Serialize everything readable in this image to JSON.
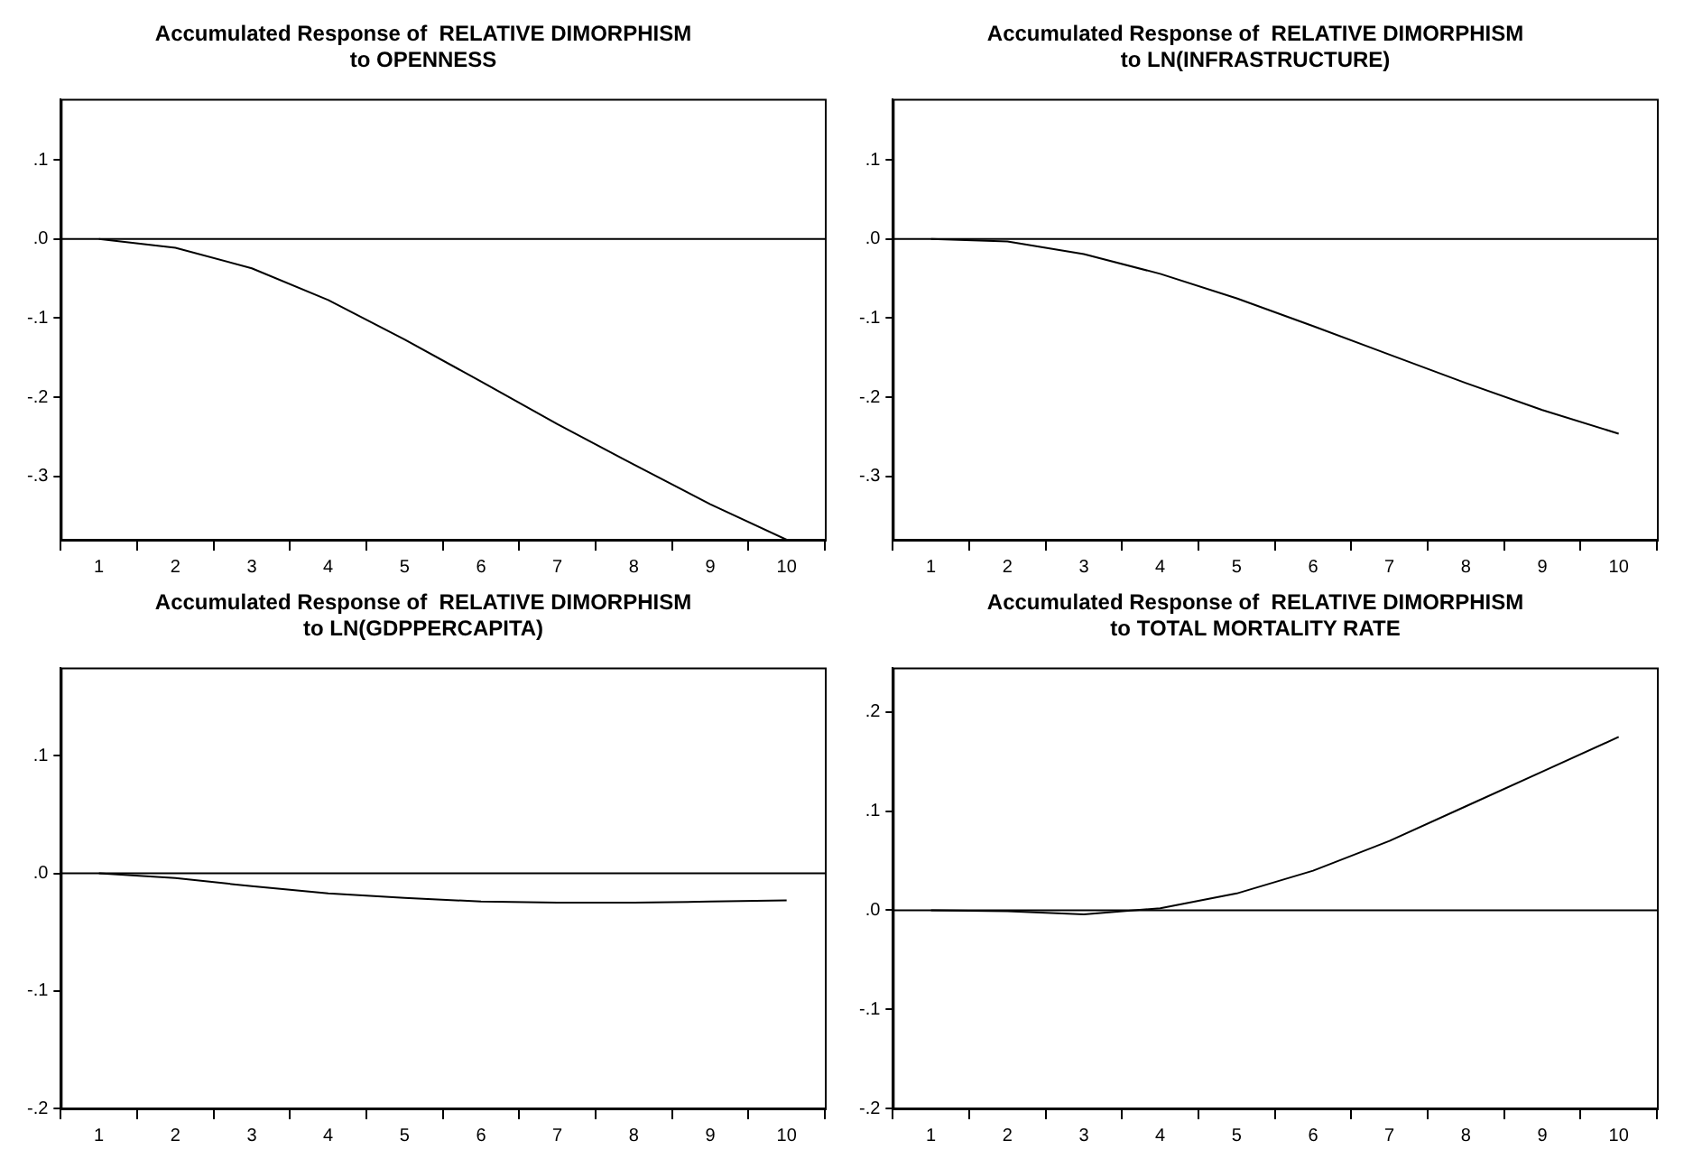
{
  "chart_data": [
    {
      "type": "line",
      "title": "Accumulated Response of  RELATIVE DIMORPHISM\nto OPENNESS",
      "categories": [
        "1",
        "2",
        "3",
        "4",
        "5",
        "6",
        "7",
        "8",
        "9",
        "10"
      ],
      "series": [
        {
          "color": "#000000",
          "values": [
            0,
            -0.011,
            -0.037,
            -0.077,
            -0.127,
            -0.18,
            -0.234,
            -0.285,
            -0.335,
            -0.38
          ]
        }
      ],
      "ylim": [
        -0.38,
        0.177
      ],
      "yticks": [
        {
          "value": 0.1,
          "label": ".1"
        },
        {
          "value": 0,
          "label": ".0"
        },
        {
          "value": -0.1,
          "label": "-.1"
        },
        {
          "value": -0.2,
          "label": "-.2"
        },
        {
          "value": -0.3,
          "label": "-.3"
        }
      ],
      "ref_lines": [
        {
          "axis": "y",
          "value": 0,
          "color": "#000000"
        }
      ],
      "grid": false,
      "legend": false,
      "marker": "none",
      "line_style": "solid"
    },
    {
      "type": "line",
      "title": "Accumulated Response of  RELATIVE DIMORPHISM\nto LN(INFRASTRUCTURE)",
      "categories": [
        "1",
        "2",
        "3",
        "4",
        "5",
        "6",
        "7",
        "8",
        "9",
        "10"
      ],
      "series": [
        {
          "color": "#000000",
          "values": [
            0,
            -0.003,
            -0.019,
            -0.044,
            -0.075,
            -0.11,
            -0.146,
            -0.182,
            -0.216,
            -0.246
          ]
        }
      ],
      "ylim": [
        -0.38,
        0.177
      ],
      "yticks": [
        {
          "value": 0.1,
          "label": ".1"
        },
        {
          "value": 0,
          "label": ".0"
        },
        {
          "value": -0.1,
          "label": "-.1"
        },
        {
          "value": -0.2,
          "label": "-.2"
        },
        {
          "value": -0.3,
          "label": "-.3"
        }
      ],
      "ref_lines": [
        {
          "axis": "y",
          "value": 0,
          "color": "#000000"
        }
      ],
      "grid": false,
      "legend": false,
      "marker": "none",
      "line_style": "solid"
    },
    {
      "type": "line",
      "title": "Accumulated Response of  RELATIVE DIMORPHISM\nto LN(GDPPERCAPITA)",
      "categories": [
        "1",
        "2",
        "3",
        "4",
        "5",
        "6",
        "7",
        "8",
        "9",
        "10"
      ],
      "series": [
        {
          "color": "#000000",
          "values": [
            0,
            -0.004,
            -0.011,
            -0.017,
            -0.021,
            -0.024,
            -0.025,
            -0.025,
            -0.024,
            -0.023
          ]
        }
      ],
      "ylim": [
        -0.2,
        0.175
      ],
      "yticks": [
        {
          "value": 0.1,
          "label": ".1"
        },
        {
          "value": 0,
          "label": ".0"
        },
        {
          "value": -0.1,
          "label": "-.1"
        },
        {
          "value": -0.2,
          "label": "-.2"
        }
      ],
      "ref_lines": [
        {
          "axis": "y",
          "value": 0,
          "color": "#000000"
        }
      ],
      "grid": false,
      "legend": false,
      "marker": "none",
      "line_style": "solid"
    },
    {
      "type": "line",
      "title": "Accumulated Response of  RELATIVE DIMORPHISM\nto TOTAL MORTALITY RATE",
      "categories": [
        "1",
        "2",
        "3",
        "4",
        "5",
        "6",
        "7",
        "8",
        "9",
        "10"
      ],
      "series": [
        {
          "color": "#000000",
          "values": [
            0,
            -0.001,
            -0.004,
            0.002,
            0.017,
            0.04,
            0.07,
            0.105,
            0.14,
            0.175
          ]
        }
      ],
      "ylim": [
        -0.2,
        0.245
      ],
      "yticks": [
        {
          "value": 0.2,
          "label": ".2"
        },
        {
          "value": 0.1,
          "label": ".1"
        },
        {
          "value": 0,
          "label": ".0"
        },
        {
          "value": -0.1,
          "label": "-.1"
        },
        {
          "value": -0.2,
          "label": "-.2"
        }
      ],
      "ref_lines": [
        {
          "axis": "y",
          "value": 0,
          "color": "#000000"
        }
      ],
      "grid": false,
      "legend": false,
      "marker": "none",
      "line_style": "solid"
    }
  ]
}
